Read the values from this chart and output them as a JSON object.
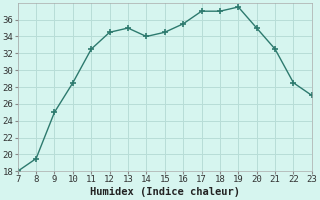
{
  "x": [
    7,
    8,
    9,
    10,
    11,
    12,
    13,
    14,
    15,
    16,
    17,
    18,
    19,
    20,
    21,
    22,
    23
  ],
  "y": [
    18,
    19.5,
    25,
    28.5,
    32.5,
    34.5,
    35,
    34,
    34.5,
    35.5,
    37,
    37,
    37.5,
    35,
    32.5,
    28.5,
    27
  ],
  "line_color": "#2d7a6e",
  "marker": "+",
  "marker_size": 5,
  "marker_lw": 1.2,
  "line_width": 1.0,
  "background_color": "#d6f5ef",
  "grid_color": "#b8ddd7",
  "xlabel": "Humidex (Indice chaleur)",
  "xlim": [
    7,
    23
  ],
  "ylim": [
    18,
    38
  ],
  "yticks": [
    18,
    20,
    22,
    24,
    26,
    28,
    30,
    32,
    34,
    36
  ],
  "xticks": [
    7,
    8,
    9,
    10,
    11,
    12,
    13,
    14,
    15,
    16,
    17,
    18,
    19,
    20,
    21,
    22,
    23
  ],
  "tick_fontsize": 6.5,
  "xlabel_fontsize": 7.5
}
